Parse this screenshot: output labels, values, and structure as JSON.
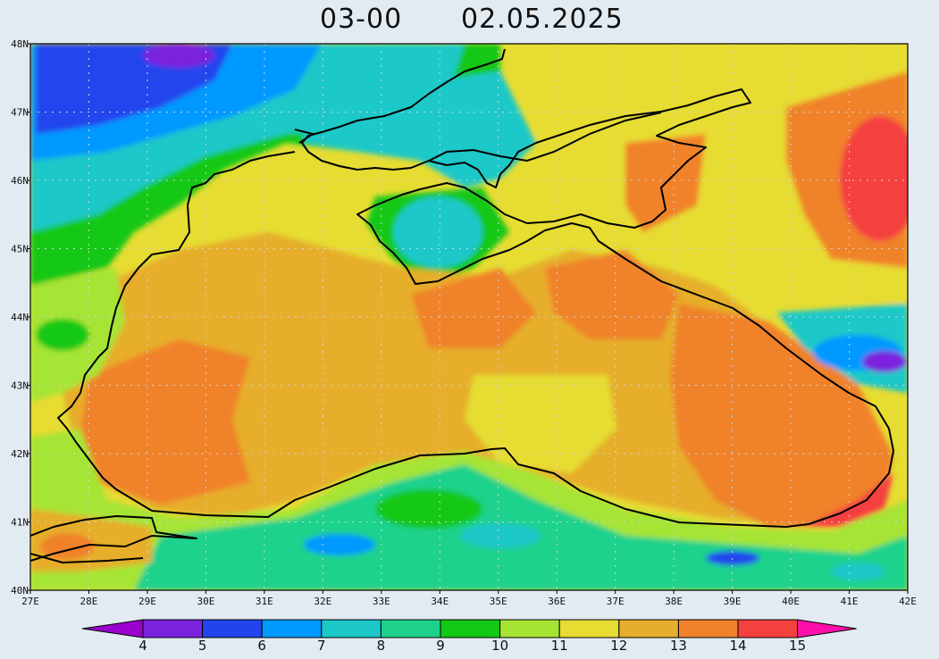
{
  "title": {
    "run": "03-00",
    "date": "02.05.2025"
  },
  "map": {
    "lon_range": [
      27,
      42
    ],
    "lat_range": [
      40,
      48
    ],
    "lon_ticks": [
      "27E",
      "28E",
      "29E",
      "30E",
      "31E",
      "32E",
      "33E",
      "34E",
      "35E",
      "36E",
      "37E",
      "38E",
      "39E",
      "40E",
      "41E",
      "42E"
    ],
    "lat_ticks": [
      "40N",
      "41N",
      "42N",
      "43N",
      "44N",
      "45N",
      "46N",
      "47N",
      "48N"
    ],
    "grid": true
  },
  "colorbar": {
    "labels": [
      "4",
      "5",
      "6",
      "7",
      "8",
      "9",
      "10",
      "11",
      "12",
      "13",
      "14",
      "15"
    ],
    "colors": [
      "#9900cc",
      "#7a22dd",
      "#2244ee",
      "#0099ff",
      "#1cc8c8",
      "#1ed28c",
      "#12c812",
      "#a6e434",
      "#e6dc32",
      "#e6ae2c",
      "#f0822c",
      "#f54040",
      "#ff0faa"
    ]
  }
}
